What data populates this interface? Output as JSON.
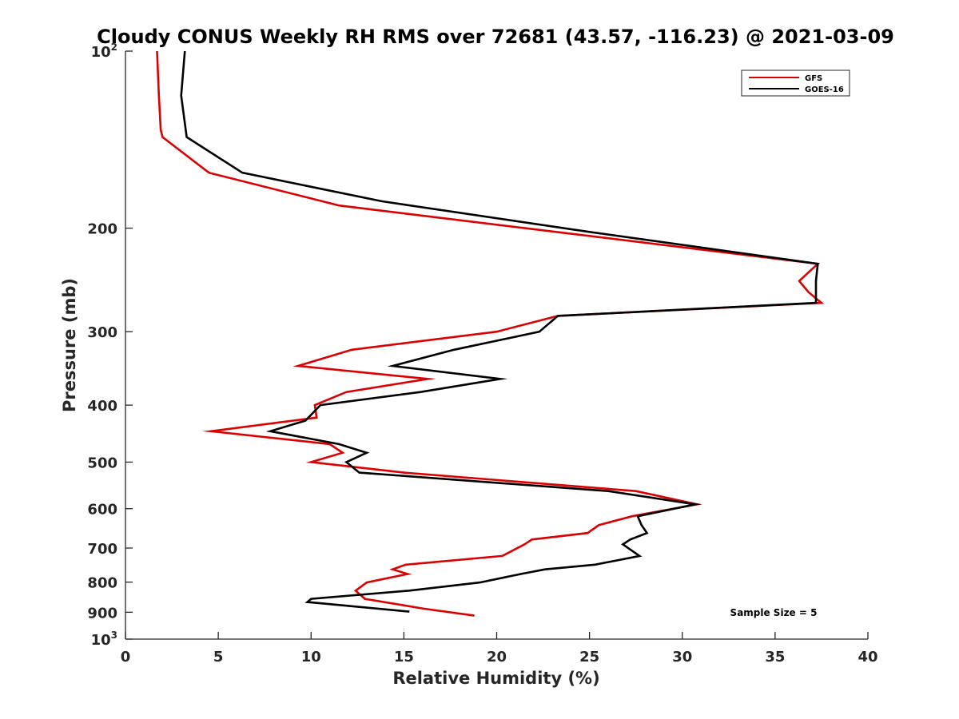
{
  "chart_data": {
    "type": "line",
    "title": "Cloudy CONUS Weekly RH RMS over 72681 (43.57, -116.23) @ 2021-03-09",
    "xlabel": "Relative Humidity (%)",
    "ylabel": "Pressure (mb)",
    "xlim": [
      0,
      40
    ],
    "ylim": [
      100,
      1000
    ],
    "y_scale": "log",
    "y_reversed": true,
    "grid": false,
    "legend_position": "top-right",
    "x_ticks": [
      0,
      5,
      10,
      15,
      20,
      25,
      30,
      35,
      40
    ],
    "y_ticks": [
      {
        "value": 100,
        "base": "10",
        "exp": "2"
      },
      {
        "value": 200,
        "label": "200"
      },
      {
        "value": 300,
        "label": "300"
      },
      {
        "value": 400,
        "label": "400"
      },
      {
        "value": 500,
        "label": "500"
      },
      {
        "value": 600,
        "label": "600"
      },
      {
        "value": 700,
        "label": "700"
      },
      {
        "value": 800,
        "label": "800"
      },
      {
        "value": 900,
        "label": "900"
      },
      {
        "value": 1000,
        "base": "10",
        "exp": "3"
      }
    ],
    "series": [
      {
        "name": "GFS",
        "color": "#dd0000",
        "points": [
          [
            1.7,
            100
          ],
          [
            1.8,
            119
          ],
          [
            1.9,
            136
          ],
          [
            2.0,
            140
          ],
          [
            4.5,
            161
          ],
          [
            11.5,
            183
          ],
          [
            37.3,
            230
          ],
          [
            36.3,
            246
          ],
          [
            36.8,
            257
          ],
          [
            37.5,
            268
          ],
          [
            23.3,
            282
          ],
          [
            20.0,
            300
          ],
          [
            12.2,
            322
          ],
          [
            9.3,
            343
          ],
          [
            16.3,
            361
          ],
          [
            11.9,
            380
          ],
          [
            10.2,
            400
          ],
          [
            10.3,
            420
          ],
          [
            4.6,
            443
          ],
          [
            11.0,
            466
          ],
          [
            11.7,
            482
          ],
          [
            10.0,
            500
          ],
          [
            15.0,
            521
          ],
          [
            27.5,
            560
          ],
          [
            30.8,
            590
          ],
          [
            27.3,
            618
          ],
          [
            25.5,
            640
          ],
          [
            24.9,
            660
          ],
          [
            21.9,
            677
          ],
          [
            21.5,
            690
          ],
          [
            20.3,
            722
          ],
          [
            15.1,
            747
          ],
          [
            14.4,
            761
          ],
          [
            15.2,
            775
          ],
          [
            13.0,
            801
          ],
          [
            12.4,
            827
          ],
          [
            12.9,
            854
          ],
          [
            16.1,
            888
          ],
          [
            18.8,
            912
          ]
        ]
      },
      {
        "name": "GOES-16",
        "color": "#000000",
        "points": [
          [
            3.2,
            100
          ],
          [
            3.0,
            119
          ],
          [
            3.3,
            140
          ],
          [
            6.3,
            161
          ],
          [
            13.8,
            180
          ],
          [
            25.0,
            203
          ],
          [
            37.3,
            230
          ],
          [
            37.2,
            246
          ],
          [
            37.2,
            268
          ],
          [
            23.3,
            282
          ],
          [
            22.3,
            300
          ],
          [
            17.7,
            322
          ],
          [
            14.4,
            343
          ],
          [
            20.2,
            361
          ],
          [
            15.9,
            380
          ],
          [
            10.5,
            400
          ],
          [
            9.7,
            425
          ],
          [
            7.8,
            443
          ],
          [
            11.5,
            466
          ],
          [
            13.0,
            482
          ],
          [
            11.9,
            500
          ],
          [
            12.6,
            521
          ],
          [
            26.0,
            560
          ],
          [
            30.7,
            590
          ],
          [
            27.6,
            618
          ],
          [
            27.8,
            640
          ],
          [
            28.1,
            660
          ],
          [
            27.2,
            677
          ],
          [
            26.8,
            690
          ],
          [
            27.7,
            722
          ],
          [
            25.3,
            747
          ],
          [
            22.6,
            761
          ],
          [
            21.3,
            775
          ],
          [
            19.1,
            801
          ],
          [
            15.3,
            827
          ],
          [
            10.0,
            854
          ],
          [
            9.8,
            865
          ],
          [
            15.3,
            898
          ]
        ]
      }
    ],
    "annotations": [
      {
        "text": "Sample Size = 5"
      }
    ]
  }
}
